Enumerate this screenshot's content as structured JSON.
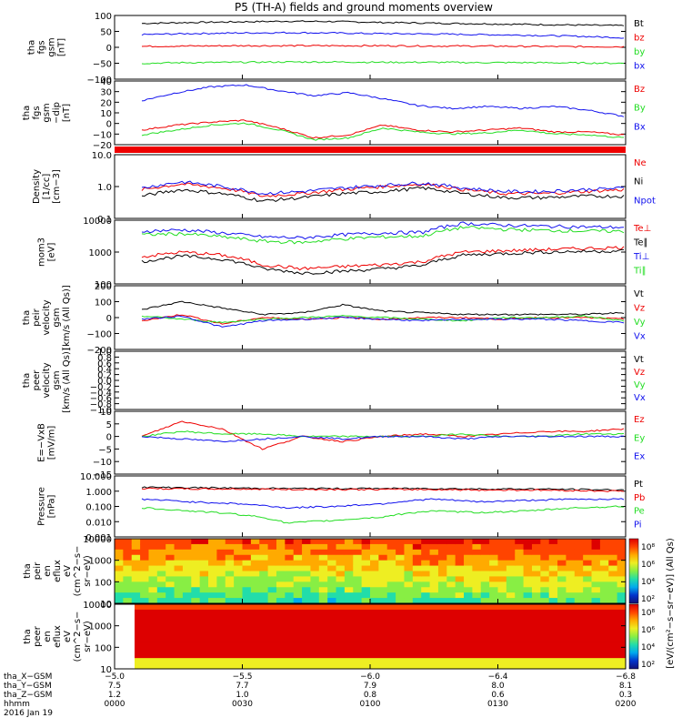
{
  "title": "P5 (TH-A) fields and ground moments overview",
  "colors": {
    "black": "#000000",
    "red": "#ee0000",
    "green": "#22dd22",
    "blue": "#1111ee"
  },
  "chart_data": [
    {
      "id": "fgs_gsm",
      "type": "line",
      "ylabel": [
        "tha",
        "fgs",
        "gsm",
        "[nT]"
      ],
      "yticks": [
        "100",
        "50",
        "0",
        "−50",
        "−100"
      ],
      "ylim": [
        -100,
        100
      ],
      "legend": [
        {
          "label": "Bt",
          "color": "black"
        },
        {
          "label": "bz",
          "color": "red"
        },
        {
          "label": "by",
          "color": "green"
        },
        {
          "label": "bx",
          "color": "blue"
        }
      ],
      "series": [
        {
          "color": "black",
          "values": [
            75,
            78,
            80,
            82,
            81,
            78,
            76,
            74,
            72,
            70,
            68
          ]
        },
        {
          "color": "blue",
          "values": [
            40,
            43,
            45,
            46,
            45,
            43,
            42,
            40,
            38,
            35,
            30
          ]
        },
        {
          "color": "red",
          "values": [
            3,
            4,
            5,
            5,
            5,
            5,
            4,
            4,
            3,
            2,
            2
          ]
        },
        {
          "color": "green",
          "values": [
            -50,
            -48,
            -47,
            -46,
            -46,
            -47,
            -47,
            -48,
            -48,
            -49,
            -50
          ]
        }
      ]
    },
    {
      "id": "fgs_gsm_dip",
      "type": "line",
      "ylabel": [
        "tha",
        "fgs",
        "gsm",
        "−dip",
        "[nT]"
      ],
      "yticks": [
        "40",
        "30",
        "20",
        "10",
        "0",
        "−10",
        "−20"
      ],
      "ylim": [
        -25,
        40
      ],
      "legend": [
        {
          "label": "Bz",
          "color": "red"
        },
        {
          "label": "By",
          "color": "green"
        },
        {
          "label": "Bx",
          "color": "blue"
        }
      ],
      "series": [
        {
          "color": "blue",
          "values": [
            20,
            28,
            34,
            36,
            30,
            25,
            28,
            22,
            15,
            12,
            14,
            12,
            14,
            10,
            4
          ]
        },
        {
          "color": "red",
          "values": [
            -10,
            -5,
            -2,
            0,
            -8,
            -18,
            -15,
            -5,
            -10,
            -12,
            -10,
            -8,
            -12,
            -12,
            -15
          ]
        },
        {
          "color": "green",
          "values": [
            -15,
            -10,
            -5,
            -3,
            -10,
            -20,
            -18,
            -8,
            -12,
            -14,
            -13,
            -10,
            -14,
            -15,
            -18
          ]
        }
      ]
    },
    {
      "id": "density",
      "type": "line",
      "log": true,
      "ylabel": [
        "Density",
        "[1/cc]",
        "[cm−3]"
      ],
      "yticks": [
        "10.0",
        "1.0",
        "0.1"
      ],
      "ylim": [
        0.1,
        10
      ],
      "legend": [
        {
          "label": "Ne",
          "color": "red"
        },
        {
          "label": "Ni",
          "color": "black"
        },
        {
          "label": "Npot",
          "color": "blue"
        }
      ],
      "series": [
        {
          "color": "red",
          "values": [
            0.8,
            1.2,
            0.9,
            0.5,
            0.6,
            0.8,
            1.0,
            1.2,
            0.8,
            0.6,
            0.6,
            0.7,
            0.8
          ]
        },
        {
          "color": "black",
          "values": [
            0.5,
            0.8,
            0.6,
            0.35,
            0.45,
            0.6,
            0.7,
            0.9,
            0.6,
            0.45,
            0.45,
            0.5,
            0.5
          ]
        },
        {
          "color": "blue",
          "values": [
            0.9,
            1.4,
            1.0,
            0.6,
            0.7,
            0.9,
            1.1,
            1.3,
            0.9,
            0.7,
            0.7,
            0.8,
            0.9
          ]
        }
      ]
    },
    {
      "id": "temperature",
      "type": "line",
      "log": true,
      "ylabel": [
        "mom3",
        "[eV]"
      ],
      "yticks": [
        "10000",
        "1000",
        "100"
      ],
      "ylim": [
        100,
        10000
      ],
      "legend": [
        {
          "label": "Te⊥",
          "color": "red"
        },
        {
          "label": "Te∥",
          "color": "black"
        },
        {
          "label": "Ti⊥",
          "color": "blue"
        },
        {
          "label": "Ti∥",
          "color": "green"
        }
      ],
      "series": [
        {
          "color": "blue",
          "values": [
            4500,
            5000,
            4000,
            3000,
            2800,
            3500,
            4000,
            4200,
            8000,
            7000,
            6500,
            6200,
            6000
          ]
        },
        {
          "color": "green",
          "values": [
            3500,
            3800,
            3000,
            2200,
            2000,
            2600,
            3000,
            3200,
            6000,
            5200,
            4800,
            4600,
            4500
          ]
        },
        {
          "color": "red",
          "values": [
            700,
            1000,
            800,
            400,
            300,
            350,
            400,
            500,
            1000,
            1100,
            1200,
            1300,
            1400
          ]
        },
        {
          "color": "black",
          "values": [
            500,
            750,
            600,
            300,
            220,
            250,
            300,
            380,
            800,
            900,
            1000,
            1050,
            1100
          ]
        }
      ]
    },
    {
      "id": "peir_velocity",
      "type": "line",
      "ylabel": [
        "tha",
        "peir",
        "velocity",
        "gsm",
        "[km/s (All Qs)]"
      ],
      "yticks": [
        "200",
        "100",
        "0",
        "−100",
        "−200"
      ],
      "ylim": [
        -200,
        200
      ],
      "legend": [
        {
          "label": "Vt",
          "color": "black"
        },
        {
          "label": "Vz",
          "color": "red"
        },
        {
          "label": "Vy",
          "color": "green"
        },
        {
          "label": "Vx",
          "color": "blue"
        }
      ],
      "series": [
        {
          "color": "black",
          "values": [
            50,
            100,
            60,
            20,
            30,
            80,
            40,
            30,
            20,
            20,
            20,
            20,
            30
          ]
        },
        {
          "color": "red",
          "values": [
            -20,
            20,
            -40,
            0,
            -10,
            0,
            -10,
            0,
            0,
            -10,
            0,
            0,
            -10
          ]
        },
        {
          "color": "green",
          "values": [
            10,
            -10,
            -30,
            -10,
            0,
            10,
            0,
            -10,
            -20,
            0,
            0,
            10,
            -20
          ]
        },
        {
          "color": "blue",
          "values": [
            -10,
            10,
            -60,
            -20,
            -10,
            0,
            -10,
            -20,
            -10,
            -10,
            -10,
            -20,
            -30
          ]
        }
      ]
    },
    {
      "id": "peer_velocity",
      "type": "line",
      "ylabel": [
        "tha",
        "peer",
        "velocity",
        "gsm",
        "[km/s (All Qs)]"
      ],
      "yticks": [
        "1.0",
        "0.8",
        "0.6",
        "0.4",
        "0.2",
        "0.0",
        "−0.2",
        "−0.4",
        "−0.6",
        "−0.8",
        "−1.0"
      ],
      "ylim": [
        -1,
        1
      ],
      "legend": [
        {
          "label": "Vt",
          "color": "black"
        },
        {
          "label": "Vz",
          "color": "red"
        },
        {
          "label": "Vy",
          "color": "green"
        },
        {
          "label": "Vx",
          "color": "blue"
        }
      ],
      "series": []
    },
    {
      "id": "efield",
      "type": "line",
      "ylabel": [
        "E=−VxB",
        "[mV/m]"
      ],
      "yticks": [
        "10",
        "5",
        "0",
        "−5",
        "−10",
        "−15"
      ],
      "ylim": [
        -15,
        10
      ],
      "legend": [
        {
          "label": "Ez",
          "color": "red"
        },
        {
          "label": "Ey",
          "color": "green"
        },
        {
          "label": "Ex",
          "color": "blue"
        }
      ],
      "series": [
        {
          "color": "red",
          "values": [
            0,
            6,
            3,
            -5,
            0,
            -2,
            0,
            1,
            0,
            1,
            2,
            2,
            3
          ]
        },
        {
          "color": "green",
          "values": [
            0,
            2,
            1,
            1,
            0,
            0,
            0,
            0,
            1,
            0,
            0,
            1,
            1
          ]
        },
        {
          "color": "blue",
          "values": [
            0,
            -1,
            -2,
            -1,
            0,
            -1,
            0,
            0,
            -1,
            0,
            0,
            0,
            0
          ]
        }
      ]
    },
    {
      "id": "pressure",
      "type": "line",
      "log": true,
      "ylabel": [
        "Pressure",
        "[nPa]"
      ],
      "yticks": [
        "10.000",
        "1.000",
        "0.100",
        "0.010",
        "0.001"
      ],
      "ylim": [
        0.001,
        10
      ],
      "legend": [
        {
          "label": "Pt",
          "color": "black"
        },
        {
          "label": "Pb",
          "color": "red"
        },
        {
          "label": "Pe",
          "color": "green"
        },
        {
          "label": "Pi",
          "color": "blue"
        }
      ],
      "series": [
        {
          "color": "black",
          "values": [
            1.8,
            1.7,
            1.6,
            1.5,
            1.5,
            1.5,
            1.5,
            1.4,
            1.4,
            1.3,
            1.2
          ]
        },
        {
          "color": "red",
          "values": [
            1.5,
            1.4,
            1.4,
            1.3,
            1.3,
            1.3,
            1.3,
            1.2,
            1.2,
            1.1,
            1.0
          ]
        },
        {
          "color": "blue",
          "values": [
            0.3,
            0.2,
            0.15,
            0.08,
            0.1,
            0.15,
            0.3,
            0.2,
            0.25,
            0.3,
            0.3
          ]
        },
        {
          "color": "green",
          "values": [
            0.08,
            0.05,
            0.03,
            0.008,
            0.012,
            0.02,
            0.05,
            0.04,
            0.05,
            0.08,
            0.1
          ]
        }
      ]
    },
    {
      "id": "peir_eflux",
      "type": "heatmap",
      "ylabel": [
        "tha",
        "peir",
        "en",
        "eflux",
        "eV",
        "(cm^2−s−",
        "sr−eV)"
      ],
      "yticks": [
        "10000",
        "1000",
        "100",
        "10"
      ],
      "ylim": [
        5,
        25000
      ]
    },
    {
      "id": "peer_eflux",
      "type": "heatmap",
      "ylabel": [
        "tha",
        "peer",
        "en",
        "eflux",
        "eV",
        "(cm^2−s−",
        "sr−eV)"
      ],
      "yticks": [
        "10000",
        "1000",
        "100",
        "10"
      ],
      "ylim": [
        5,
        25000
      ]
    }
  ],
  "colorbar": {
    "label": "[eV/(cm²−s−sr−eV)] (All Qs)",
    "top_ticks": [
      "10⁸",
      "10⁶",
      "10⁴",
      "10²"
    ],
    "bottom_ticks": [
      "10⁸",
      "10⁶",
      "10⁴",
      "10²"
    ]
  },
  "xaxis": {
    "ticks": [
      {
        "x": "−5.0",
        "y": "7.5",
        "z": "1.2",
        "t": "0000"
      },
      {
        "x": "−5.5",
        "y": "7.7",
        "z": "1.0",
        "t": "0030"
      },
      {
        "x": "−6.0",
        "y": "7.9",
        "z": "0.8",
        "t": "0100"
      },
      {
        "x": "−6.4",
        "y": "8.0",
        "z": "0.6",
        "t": "0130"
      },
      {
        "x": "−6.8",
        "y": "8.1",
        "z": "0.3",
        "t": "0200"
      }
    ],
    "row_labels": [
      "tha_X−GSM",
      "tha_Y−GSM",
      "tha_Z−GSM",
      "hhmm"
    ],
    "date": "2016 Jan 19"
  }
}
